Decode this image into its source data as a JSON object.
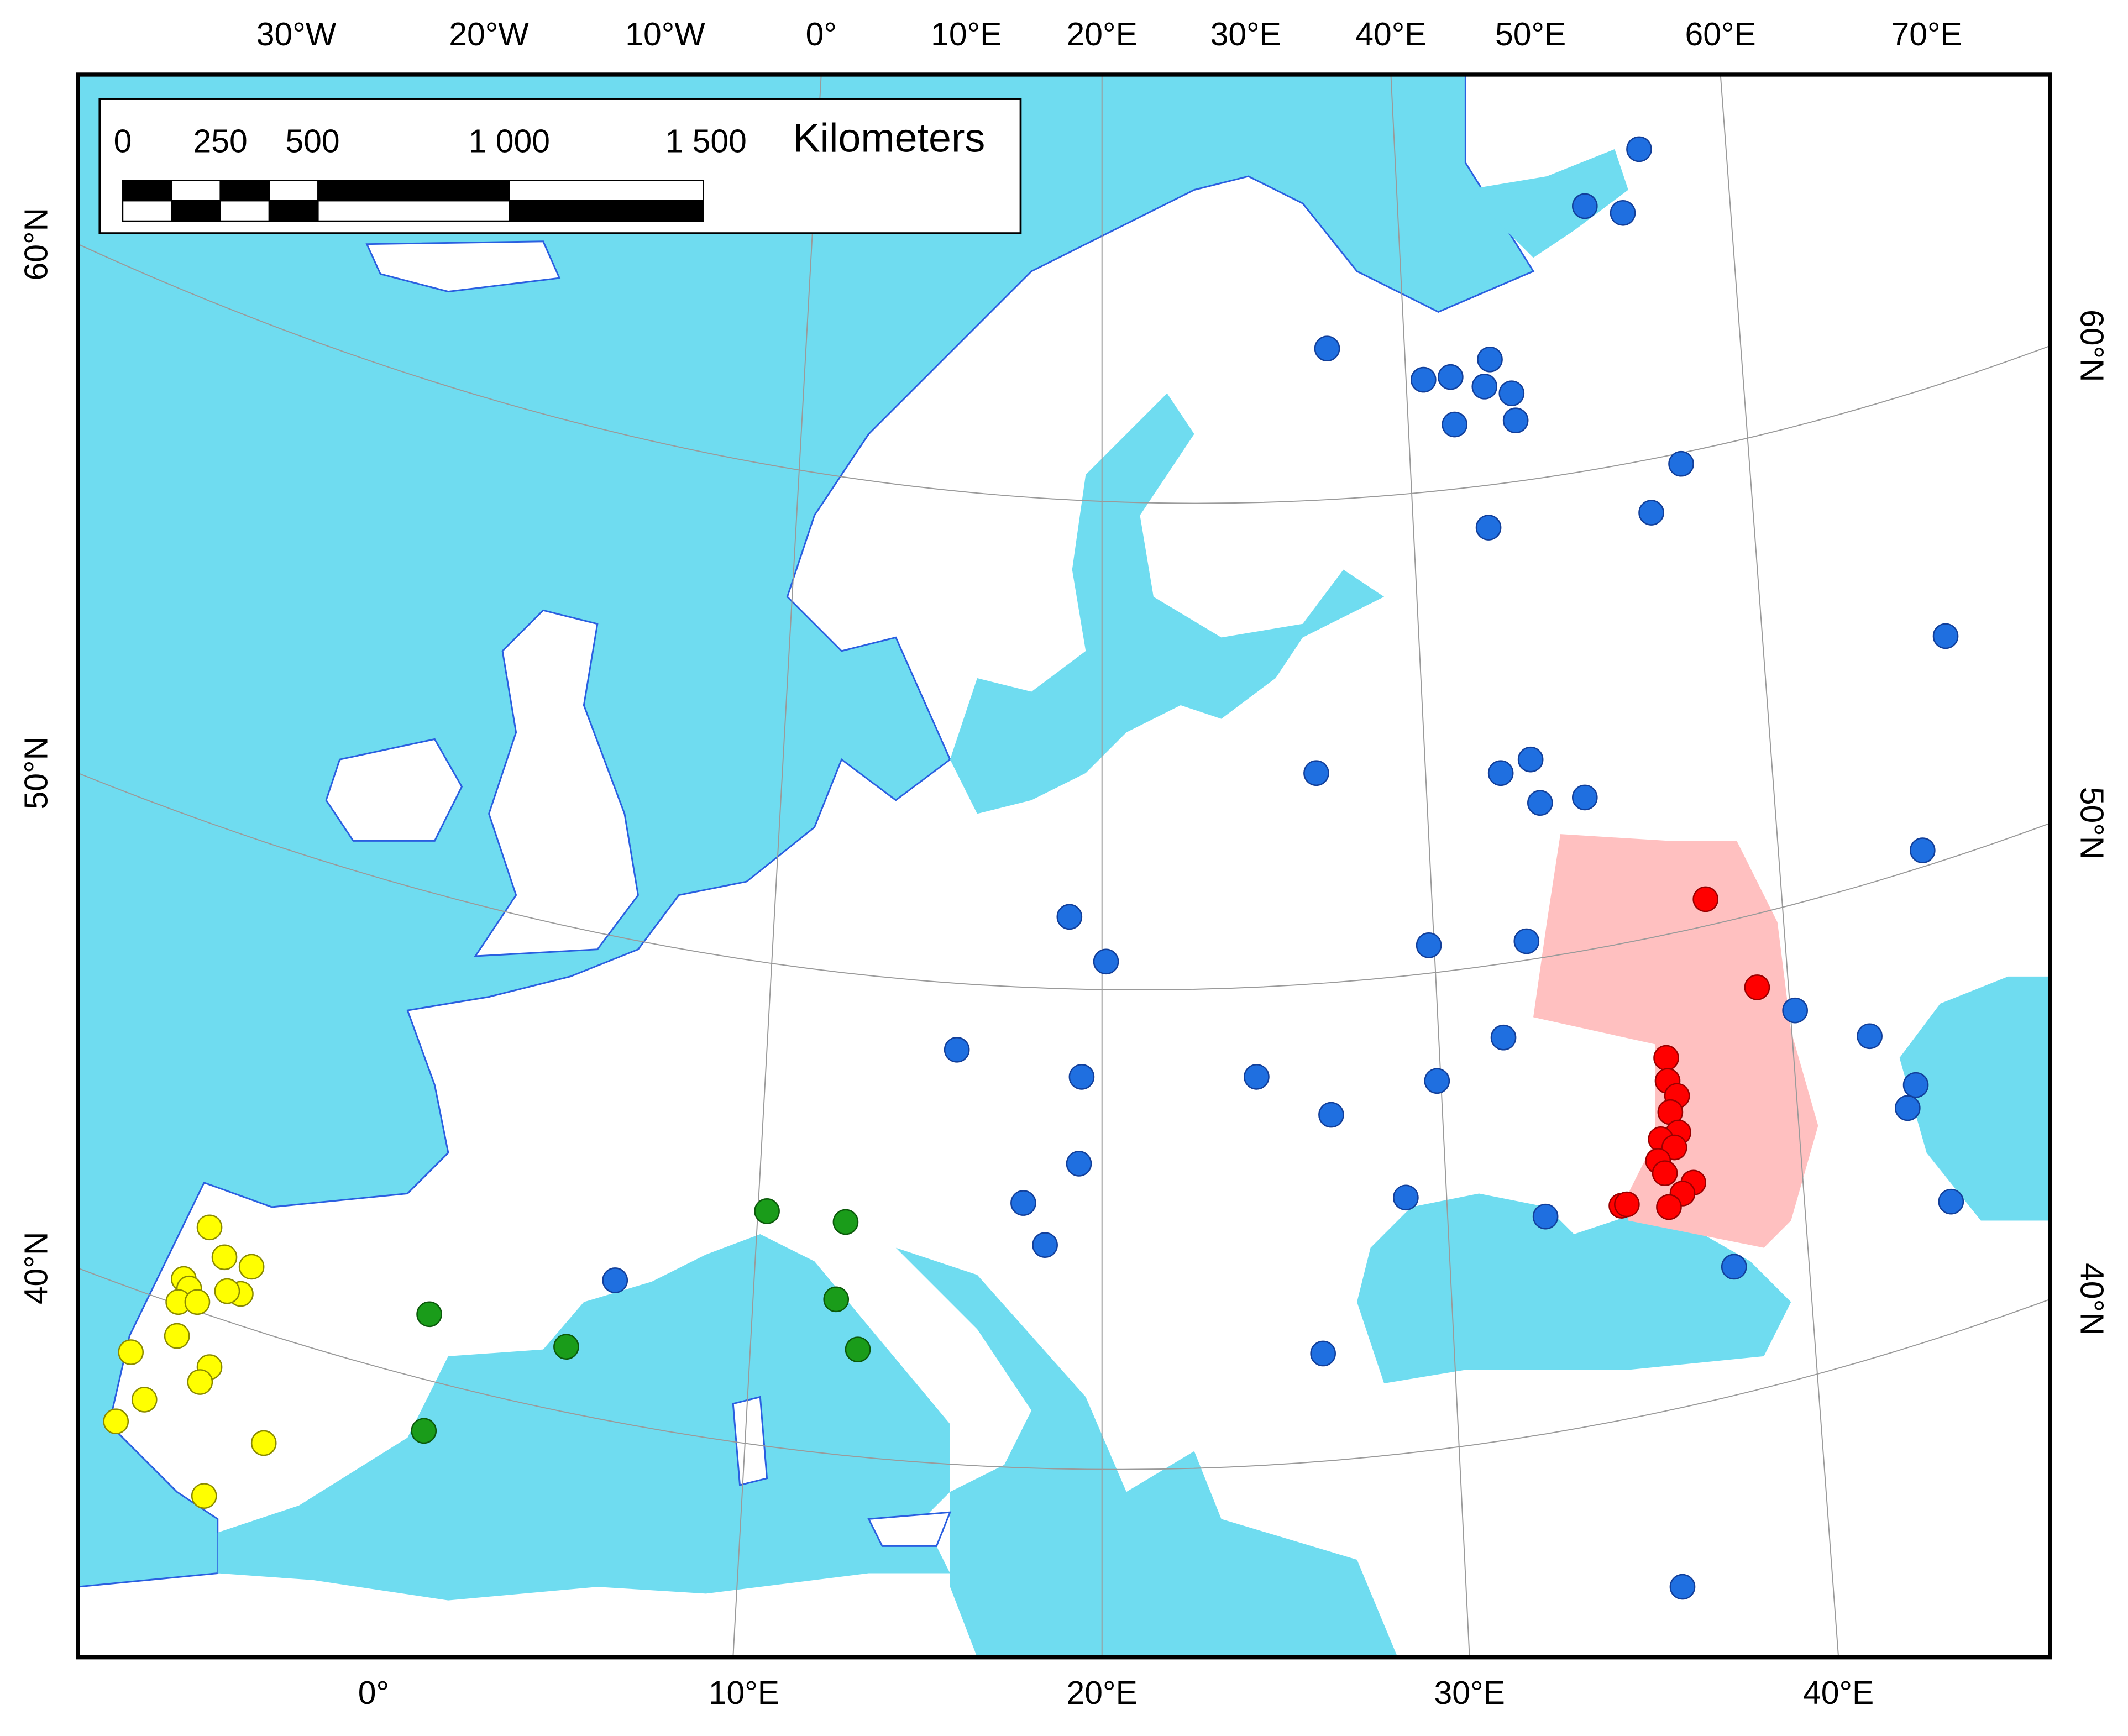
{
  "map": {
    "top_axis_labels": [
      "30°W",
      "20°W",
      "10°W",
      "0°",
      "10°E",
      "20°E",
      "30°E",
      "40°E",
      "50°E",
      "60°E",
      "70°E"
    ],
    "bottom_axis_labels": [
      "0°",
      "10°E",
      "20°E",
      "30°E",
      "40°E"
    ],
    "left_axis_labels": [
      "60°N",
      "50°N",
      "40°N"
    ],
    "right_axis_labels": [
      "60°N",
      "50°N",
      "40°N"
    ],
    "scale_bar": {
      "labels": [
        "0",
        "250",
        "500",
        "1 000",
        "1 500"
      ],
      "unit": "Kilometers"
    }
  }
}
